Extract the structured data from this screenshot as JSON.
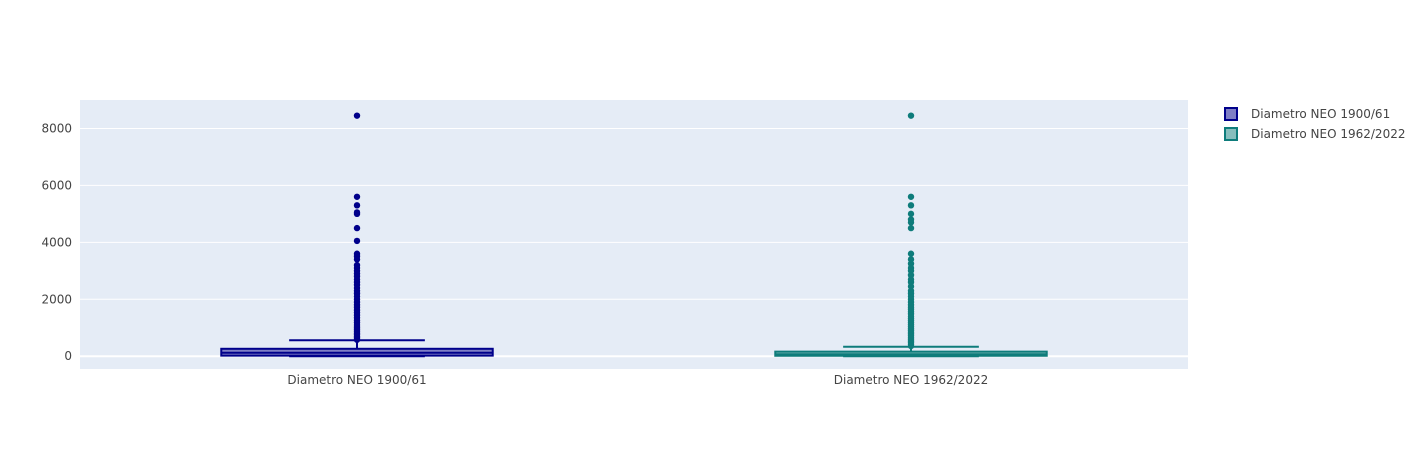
{
  "chart_data": {
    "type": "box",
    "title": "",
    "xlabel": "",
    "ylabel": "",
    "categories": [
      "Diametro NEO 1900/61",
      "Diametro NEO 1962/2022"
    ],
    "ylim": [
      -450,
      9000
    ],
    "yticks": [
      0,
      2000,
      4000,
      6000,
      8000
    ],
    "grid": true,
    "legend_position": "top-right",
    "series": [
      {
        "name": "Diametro NEO 1900/61",
        "color": "#00008b",
        "fill": "#7f7fc5",
        "min": 0,
        "q1": 20,
        "median": 120,
        "q3": 260,
        "upper_fence": 560,
        "outliers": [
          580,
          640,
          700,
          760,
          820,
          880,
          950,
          1020,
          1100,
          1180,
          1260,
          1350,
          1440,
          1530,
          1620,
          1710,
          1800,
          1900,
          2000,
          2100,
          2200,
          2300,
          2400,
          2500,
          2600,
          2700,
          2800,
          2900,
          3000,
          3100,
          3200,
          3400,
          3500,
          3600,
          4050,
          4500,
          5000,
          5050,
          5300,
          5600,
          8450
        ]
      },
      {
        "name": "Diametro NEO 1962/2022",
        "color": "#0e7c7b",
        "fill": "#87bebd",
        "min": 0,
        "q1": 15,
        "median": 70,
        "q3": 160,
        "upper_fence": 330,
        "outliers": [
          360,
          420,
          480,
          540,
          600,
          660,
          720,
          780,
          840,
          900,
          970,
          1040,
          1110,
          1180,
          1250,
          1320,
          1400,
          1480,
          1560,
          1640,
          1720,
          1800,
          1900,
          2000,
          2100,
          2200,
          2300,
          2450,
          2600,
          2700,
          2850,
          3000,
          3100,
          3250,
          3400,
          3600,
          4500,
          4700,
          4800,
          5000,
          5300,
          5600,
          8450
        ]
      }
    ]
  }
}
